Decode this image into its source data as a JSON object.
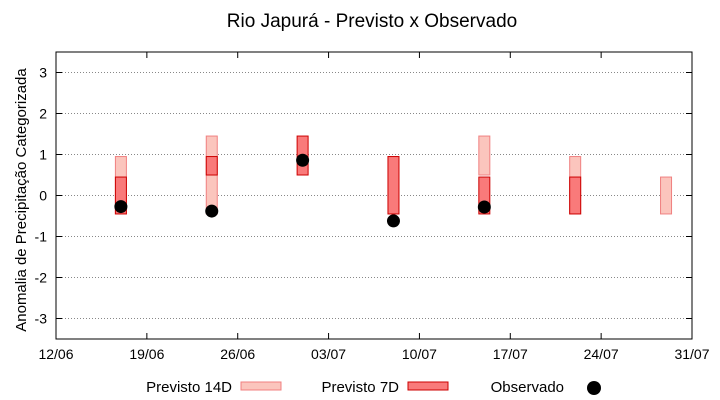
{
  "chart_data": {
    "type": "range-bar-with-points",
    "title": "Rio Japurá - Previsto x Observado",
    "xlabel": "",
    "ylabel": "Anomalia de Precipitação Categorizada",
    "x_ticks": [
      "12/06",
      "19/06",
      "26/06",
      "03/07",
      "10/07",
      "17/07",
      "24/07",
      "31/07"
    ],
    "x_tick_days": [
      0,
      7,
      14,
      21,
      28,
      35,
      42,
      49
    ],
    "ylim": [
      -3.5,
      3.5
    ],
    "y_ticks": [
      -3,
      -2,
      -1,
      0,
      1,
      2,
      3
    ],
    "grid": "horizontal dotted",
    "colors": {
      "forecast_14d_fill": "#fbc5bd",
      "forecast_14d_stroke": "#f08080",
      "forecast_7d_fill": "#f97a7a",
      "forecast_7d_stroke": "#cc0000",
      "observed": "#000000"
    },
    "series": [
      {
        "name": "Previsto 14D",
        "kind": "range",
        "points": [
          {
            "day": 5,
            "low": -0.45,
            "high": 0.95
          },
          {
            "day": 12,
            "low": -0.45,
            "high": 1.45
          },
          {
            "day": 26,
            "low": -0.45,
            "high": 0.95
          },
          {
            "day": 33,
            "low": 0.5,
            "high": 1.45
          },
          {
            "day": 40,
            "low": -0.45,
            "high": 0.95
          },
          {
            "day": 47,
            "low": -0.45,
            "high": 0.45
          }
        ]
      },
      {
        "name": "Previsto 7D",
        "kind": "range",
        "points": [
          {
            "day": 5,
            "low": -0.45,
            "high": 0.45
          },
          {
            "day": 12,
            "low": 0.5,
            "high": 0.95
          },
          {
            "day": 19,
            "low": 0.5,
            "high": 1.45
          },
          {
            "day": 26,
            "low": -0.45,
            "high": 0.95
          },
          {
            "day": 33,
            "low": -0.45,
            "high": 0.45
          },
          {
            "day": 40,
            "low": -0.45,
            "high": 0.45
          }
        ]
      },
      {
        "name": "Observado",
        "kind": "point",
        "points": [
          {
            "day": 5,
            "value": -0.27
          },
          {
            "day": 12,
            "value": -0.38
          },
          {
            "day": 19,
            "value": 0.86
          },
          {
            "day": 26,
            "value": -0.62
          },
          {
            "day": 33,
            "value": -0.28
          }
        ]
      }
    ],
    "legend": {
      "placement": "bottom",
      "entries": [
        "Previsto 14D",
        "Previsto 7D",
        "Observado"
      ]
    }
  }
}
